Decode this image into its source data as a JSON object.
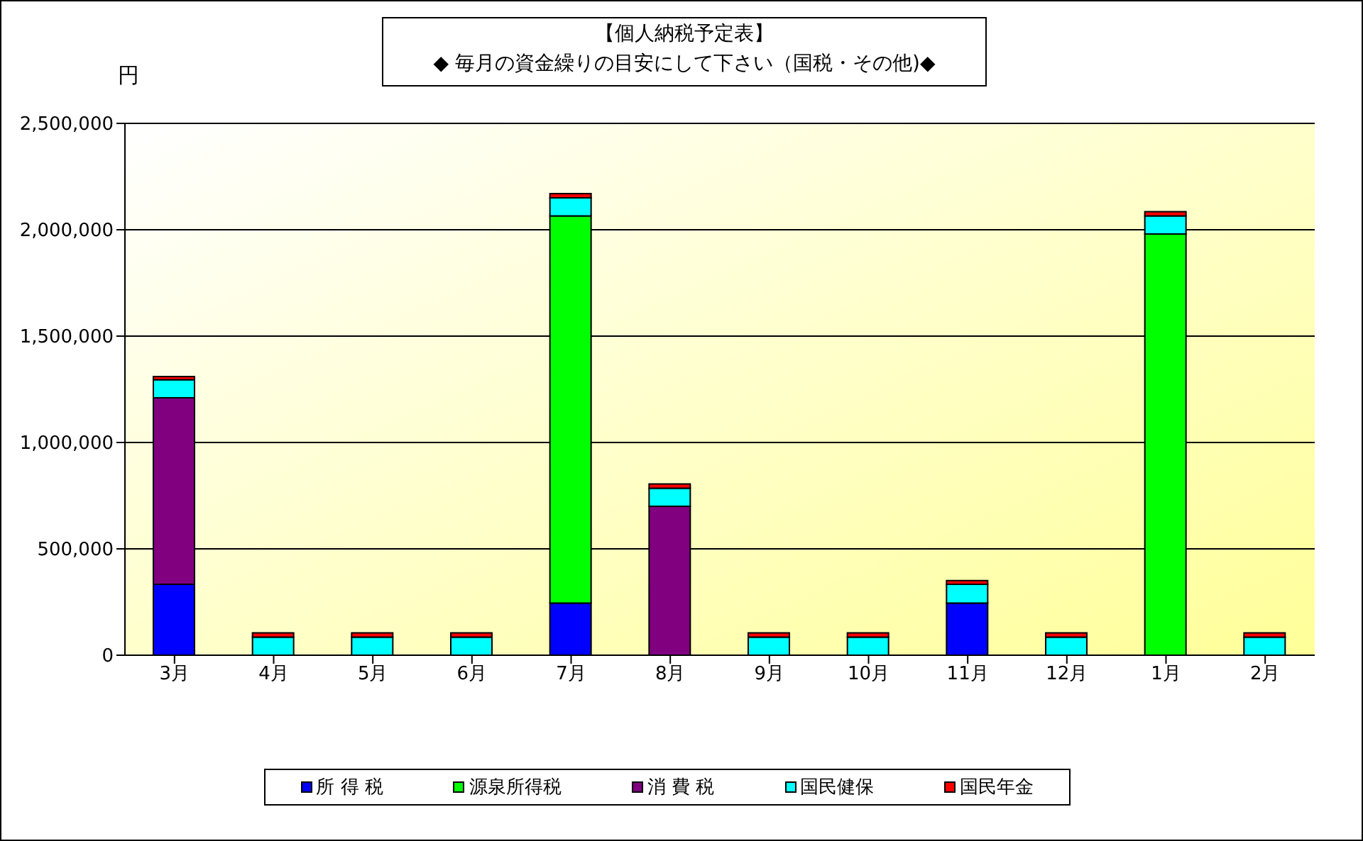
{
  "chart_data": {
    "type": "bar",
    "stacked": true,
    "title": "【個人納税予定表】",
    "subtitle": "◆ 毎月の資金繰りの目安にして下さい（国税・その他)◆",
    "ylabel": "円",
    "categories": [
      "3月",
      "4月",
      "5月",
      "6月",
      "7月",
      "8月",
      "9月",
      "10月",
      "11月",
      "12月",
      "1月",
      "2月"
    ],
    "series": [
      {
        "name": "所 得 税",
        "color": "#0000ff",
        "values": [
          333000,
          0,
          0,
          0,
          245000,
          0,
          0,
          0,
          245000,
          0,
          0,
          0
        ]
      },
      {
        "name": "源泉所得税",
        "color": "#00ff00",
        "values": [
          0,
          0,
          0,
          0,
          1820000,
          0,
          0,
          0,
          0,
          0,
          1980000,
          0
        ]
      },
      {
        "name": "消 費 税",
        "color": "#800080",
        "values": [
          877000,
          0,
          0,
          0,
          0,
          700000,
          0,
          0,
          0,
          0,
          0,
          0
        ]
      },
      {
        "name": "国民健保",
        "color": "#00ffff",
        "values": [
          85000,
          85000,
          85000,
          85000,
          85000,
          85000,
          85000,
          85000,
          88000,
          85000,
          85000,
          85000
        ]
      },
      {
        "name": "国民年金",
        "color": "#ff0000",
        "values": [
          15000,
          20000,
          20000,
          20000,
          20000,
          20000,
          20000,
          20000,
          18000,
          20000,
          20000,
          20000
        ]
      }
    ],
    "ylim": [
      0,
      2500000
    ],
    "yticks": [
      {
        "value": 0,
        "label": "0"
      },
      {
        "value": 500000,
        "label": "500,000"
      },
      {
        "value": 1000000,
        "label": "1,000,000"
      },
      {
        "value": 1500000,
        "label": "1,500,000"
      },
      {
        "value": 2000000,
        "label": "2,000,000"
      },
      {
        "value": 2500000,
        "label": "2,500,000"
      }
    ],
    "grid": "y",
    "legend": "bottom"
  }
}
